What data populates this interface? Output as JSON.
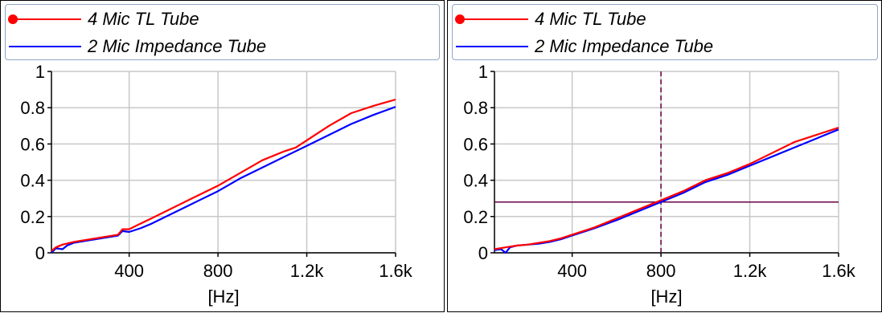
{
  "colors": {
    "series_1": "#ff0000",
    "series_2": "#0000ff",
    "grid": "#c8c8c8",
    "cursor": "#660044",
    "legend_border": "#8fa8c8"
  },
  "chart_data": [
    {
      "type": "line",
      "xlabel": "[Hz]",
      "ylabel": "",
      "xlim": [
        50,
        1600
      ],
      "ylim": [
        0,
        1
      ],
      "grid": true,
      "legend_position": "top",
      "x_ticks": [
        400,
        800,
        1200,
        1600
      ],
      "x_tick_labels": [
        "400",
        "800",
        "1.2k",
        "1.6k"
      ],
      "y_ticks": [
        0,
        0.2,
        0.4,
        0.6,
        0.8,
        1
      ],
      "y_tick_labels": [
        "0",
        "0.2",
        "0.4",
        "0.6",
        "0.8",
        "1"
      ],
      "series": [
        {
          "name": "4 Mic TL Tube",
          "color": "#ff0000",
          "marker": "circle",
          "x": [
            50,
            70,
            100,
            150,
            200,
            250,
            300,
            350,
            370,
            400,
            450,
            500,
            600,
            700,
            800,
            900,
            1000,
            1100,
            1150,
            1200,
            1300,
            1400,
            1500,
            1600
          ],
          "y": [
            0.01,
            0.03,
            0.045,
            0.06,
            0.07,
            0.08,
            0.09,
            0.1,
            0.13,
            0.13,
            0.16,
            0.19,
            0.25,
            0.31,
            0.37,
            0.44,
            0.51,
            0.56,
            0.58,
            0.62,
            0.7,
            0.77,
            0.81,
            0.845
          ]
        },
        {
          "name": "2 Mic Impedance Tube",
          "color": "#0000ff",
          "marker": "none",
          "x": [
            50,
            70,
            100,
            120,
            150,
            200,
            250,
            300,
            350,
            370,
            400,
            450,
            500,
            600,
            700,
            800,
            900,
            1000,
            1100,
            1200,
            1300,
            1400,
            1500,
            1600
          ],
          "y": [
            0.0,
            0.025,
            0.02,
            0.04,
            0.055,
            0.065,
            0.075,
            0.085,
            0.095,
            0.12,
            0.115,
            0.135,
            0.16,
            0.22,
            0.28,
            0.34,
            0.41,
            0.47,
            0.53,
            0.59,
            0.65,
            0.71,
            0.76,
            0.805
          ]
        }
      ]
    },
    {
      "type": "line",
      "xlabel": "[Hz]",
      "ylabel": "",
      "xlim": [
        50,
        1600
      ],
      "ylim": [
        0,
        1
      ],
      "grid": true,
      "legend_position": "top",
      "x_ticks": [
        400,
        800,
        1200,
        1600
      ],
      "x_tick_labels": [
        "400",
        "800",
        "1.2k",
        "1.6k"
      ],
      "y_ticks": [
        0,
        0.2,
        0.4,
        0.6,
        0.8,
        1
      ],
      "y_tick_labels": [
        "0",
        "0.2",
        "0.4",
        "0.6",
        "0.8",
        "1"
      ],
      "cursor": {
        "x": 800,
        "y": 0.28
      },
      "series": [
        {
          "name": "4 Mic TL Tube",
          "color": "#ff0000",
          "marker": "circle",
          "x": [
            50,
            100,
            150,
            200,
            250,
            300,
            350,
            400,
            500,
            600,
            700,
            800,
            900,
            1000,
            1100,
            1200,
            1300,
            1400,
            1500,
            1600
          ],
          "y": [
            0.02,
            0.03,
            0.04,
            0.045,
            0.055,
            0.065,
            0.08,
            0.1,
            0.14,
            0.19,
            0.24,
            0.29,
            0.34,
            0.4,
            0.44,
            0.49,
            0.55,
            0.61,
            0.65,
            0.69
          ]
        },
        {
          "name": "2 Mic Impedance Tube",
          "color": "#0000ff",
          "marker": "none",
          "x": [
            50,
            80,
            100,
            120,
            150,
            200,
            250,
            300,
            350,
            400,
            500,
            600,
            700,
            800,
            900,
            1000,
            1100,
            1200,
            1300,
            1400,
            1500,
            1600
          ],
          "y": [
            0.015,
            0.02,
            0.0,
            0.03,
            0.04,
            0.045,
            0.05,
            0.06,
            0.075,
            0.095,
            0.135,
            0.18,
            0.23,
            0.28,
            0.33,
            0.39,
            0.43,
            0.48,
            0.53,
            0.58,
            0.63,
            0.68
          ]
        }
      ]
    }
  ]
}
